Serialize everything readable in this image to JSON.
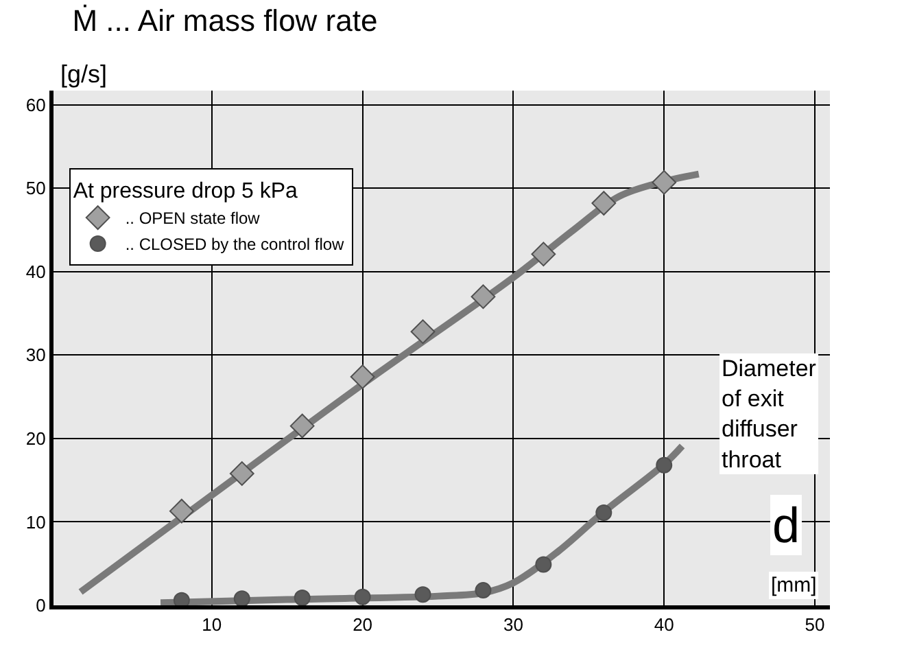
{
  "chart_data": {
    "type": "scatter",
    "title": "Ṁ ... Air mass flow rate",
    "ylabel": "[g/s]",
    "xlabel": "Diameter\nof exit\ndiffuser\nthroat",
    "legend_title": "At pressure drop 5 kPa",
    "annotations": [
      "d",
      "[mm]"
    ],
    "xlim": [
      -0.5,
      51
    ],
    "ylim": [
      0,
      61.7
    ],
    "xticks": [
      10,
      20,
      30,
      40,
      50
    ],
    "yticks": [
      0,
      10,
      20,
      30,
      40,
      50,
      60
    ],
    "grid": true,
    "legend": "top left",
    "series": [
      {
        "name": ".. OPEN state flow",
        "marker": "diamond",
        "color": "#a0a0a0",
        "x": [
          8,
          12,
          16,
          20,
          24,
          28,
          32,
          36,
          40
        ],
        "values": [
          11.3,
          15.8,
          21.5,
          27.4,
          32.8,
          37.0,
          42.1,
          48.2,
          50.7
        ]
      },
      {
        "name": ".. CLOSED by the control flow",
        "marker": "circle",
        "color": "#5a5a5a",
        "x": [
          8,
          12,
          16,
          20,
          24,
          28,
          32,
          36,
          40
        ],
        "values": [
          0.6,
          0.8,
          0.9,
          1.0,
          1.3,
          1.8,
          4.9,
          11.1,
          16.8
        ]
      },
      {
        "type": "line",
        "color": "#7a7a7a",
        "x": [
          1.3,
          10,
          20,
          30,
          34,
          37,
          40,
          42.3
        ],
        "values": [
          1.6,
          13.2,
          26.5,
          39.3,
          45,
          49,
          50.8,
          51.7
        ]
      },
      {
        "type": "line",
        "color": "#7a7a7a",
        "x": [
          6.6,
          15,
          25,
          28,
          30,
          33,
          36,
          40,
          41.2
        ],
        "values": [
          0.3,
          0.7,
          1.1,
          1.5,
          2.7,
          6.5,
          11.2,
          16.9,
          19.1
        ]
      }
    ]
  }
}
